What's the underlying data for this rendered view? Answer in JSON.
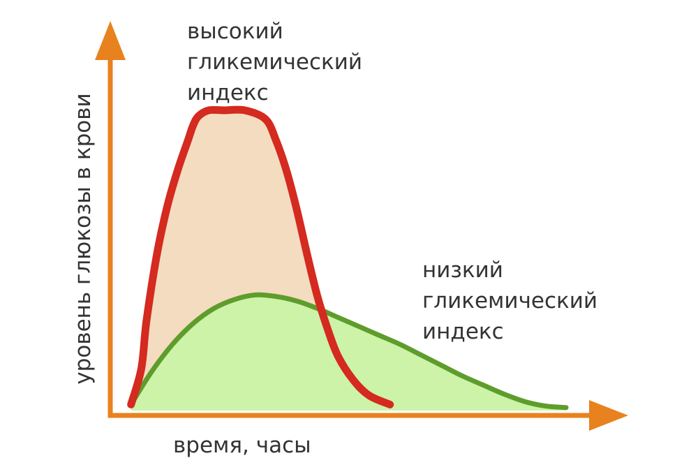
{
  "chart_data": {
    "type": "area",
    "title": "",
    "xlabel": "время, часы",
    "ylabel": "уровень глюкозы в крови",
    "xlim": [
      0,
      100
    ],
    "ylim": [
      0,
      100
    ],
    "grid": false,
    "colors": {
      "axis": "#e8821e",
      "high_line": "#d42a1f",
      "high_fill": "#f4dcc0",
      "low_line": "#5e9d2c",
      "low_fill": "#ccf3a8"
    },
    "series": [
      {
        "id": "high",
        "label_lines": [
          "высокий",
          "гликемический",
          "индекс"
        ],
        "x": [
          4,
          6,
          7,
          9,
          11,
          13,
          15,
          16,
          17,
          19,
          22,
          26,
          30,
          32,
          34,
          36,
          38,
          40,
          42,
          44,
          47,
          50,
          54
        ],
        "y": [
          2,
          14,
          30,
          52,
          68,
          80,
          90,
          95,
          98,
          100,
          100,
          100,
          97,
          90,
          80,
          67,
          52,
          38,
          27,
          18,
          10,
          5,
          2
        ]
      },
      {
        "id": "low",
        "label_lines": [
          "низкий",
          "гликемический",
          "индекс"
        ],
        "x": [
          4,
          8,
          12,
          16,
          20,
          24,
          28,
          32,
          36,
          40,
          44,
          48,
          52,
          56,
          60,
          64,
          68,
          72,
          76,
          80,
          84,
          88
        ],
        "y": [
          2,
          13,
          22,
          29,
          34,
          37,
          38.5,
          38,
          36.5,
          34,
          31,
          28,
          25,
          22,
          18.5,
          15,
          11.5,
          8.5,
          5.5,
          3,
          1.5,
          1
        ]
      }
    ]
  }
}
